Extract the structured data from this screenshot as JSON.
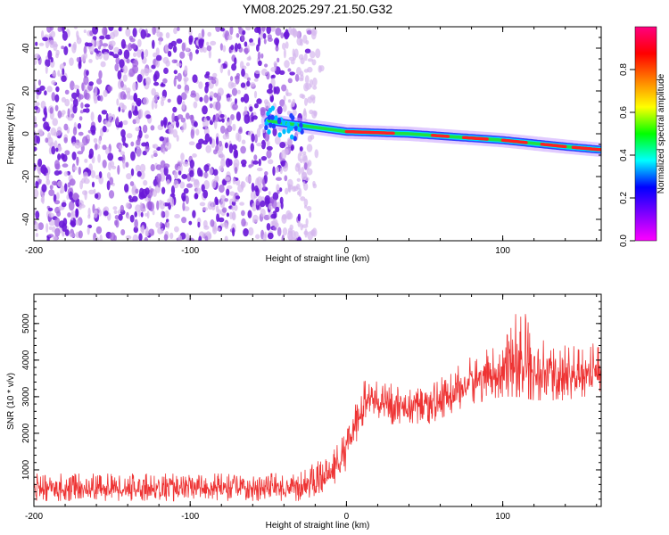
{
  "figure_title": "YM08.2025.297.21.50.G32",
  "colors": {
    "snr_line": "#ee3333",
    "blob_faint": "#d6b8ee",
    "blob_mid": "#a060e0",
    "blob_strong": "#6a18d8",
    "frame": "#000000"
  },
  "chart_data": [
    {
      "type": "heatmap",
      "title": "",
      "xlabel": "Height of straight line (km)",
      "ylabel": "Frequency (Hz)",
      "xlim": [
        -200,
        163
      ],
      "ylim": [
        -50,
        50
      ],
      "xticks": [
        -200,
        -100,
        0,
        100
      ],
      "yticks": [
        -40,
        -20,
        0,
        20,
        40
      ],
      "colorbar": {
        "label": "Normalized spectral amplitude",
        "range": [
          0,
          1
        ],
        "ticks": [
          "0.0",
          "0.2",
          "0.4",
          "0.6",
          "0.8"
        ],
        "stops": [
          "#ff00ff",
          "#8000ff",
          "#0000ff",
          "#00ffff",
          "#00ff00",
          "#ffff00",
          "#ff8000",
          "#ff0000",
          "#ff0080"
        ]
      },
      "noise_region_km": [
        -200,
        -20
      ],
      "signal_track": {
        "description": "narrow bright band",
        "x": [
          -50,
          -30,
          -10,
          0,
          20,
          40,
          60,
          80,
          100,
          120,
          140,
          163
        ],
        "freq": [
          6,
          4,
          2,
          1,
          0.5,
          0,
          -1,
          -2,
          -3,
          -4.5,
          -6,
          -7.5
        ],
        "peak_segments_x": [
          [
            0,
            30
          ],
          [
            55,
            65
          ],
          [
            75,
            90
          ],
          [
            100,
            115
          ],
          [
            125,
            140
          ],
          [
            145,
            163
          ]
        ]
      }
    },
    {
      "type": "line",
      "title": "",
      "xlabel": "Height of straight line (km)",
      "ylabel": "SNR (10 * v/v)",
      "xlim": [
        -200,
        163
      ],
      "ylim": [
        0,
        5800
      ],
      "xticks": [
        -200,
        -100,
        0,
        100
      ],
      "yticks": [
        1000,
        2000,
        3000,
        4000,
        5000
      ],
      "series": [
        {
          "name": "SNR",
          "x": [
            -200,
            -150,
            -100,
            -50,
            -30,
            -20,
            -10,
            0,
            5,
            10,
            15,
            20,
            40,
            50,
            60,
            80,
            100,
            110,
            120,
            140,
            150,
            163
          ],
          "values": [
            500,
            500,
            500,
            500,
            520,
            650,
            900,
            1500,
            2200,
            2800,
            2900,
            2800,
            2750,
            2600,
            2900,
            3400,
            3700,
            3850,
            3600,
            3500,
            3600,
            3600
          ],
          "band_low": [
            150,
            150,
            150,
            150,
            150,
            300,
            500,
            1000,
            1600,
            2200,
            2300,
            2200,
            2300,
            2200,
            2400,
            2800,
            3000,
            3000,
            2900,
            2900,
            3000,
            3000
          ],
          "band_high": [
            900,
            900,
            900,
            900,
            950,
            1200,
            1400,
            2100,
            2800,
            3400,
            3500,
            3400,
            3300,
            3200,
            3500,
            4100,
            4500,
            5800,
            4600,
            4400,
            4400,
            4500
          ]
        }
      ]
    }
  ]
}
